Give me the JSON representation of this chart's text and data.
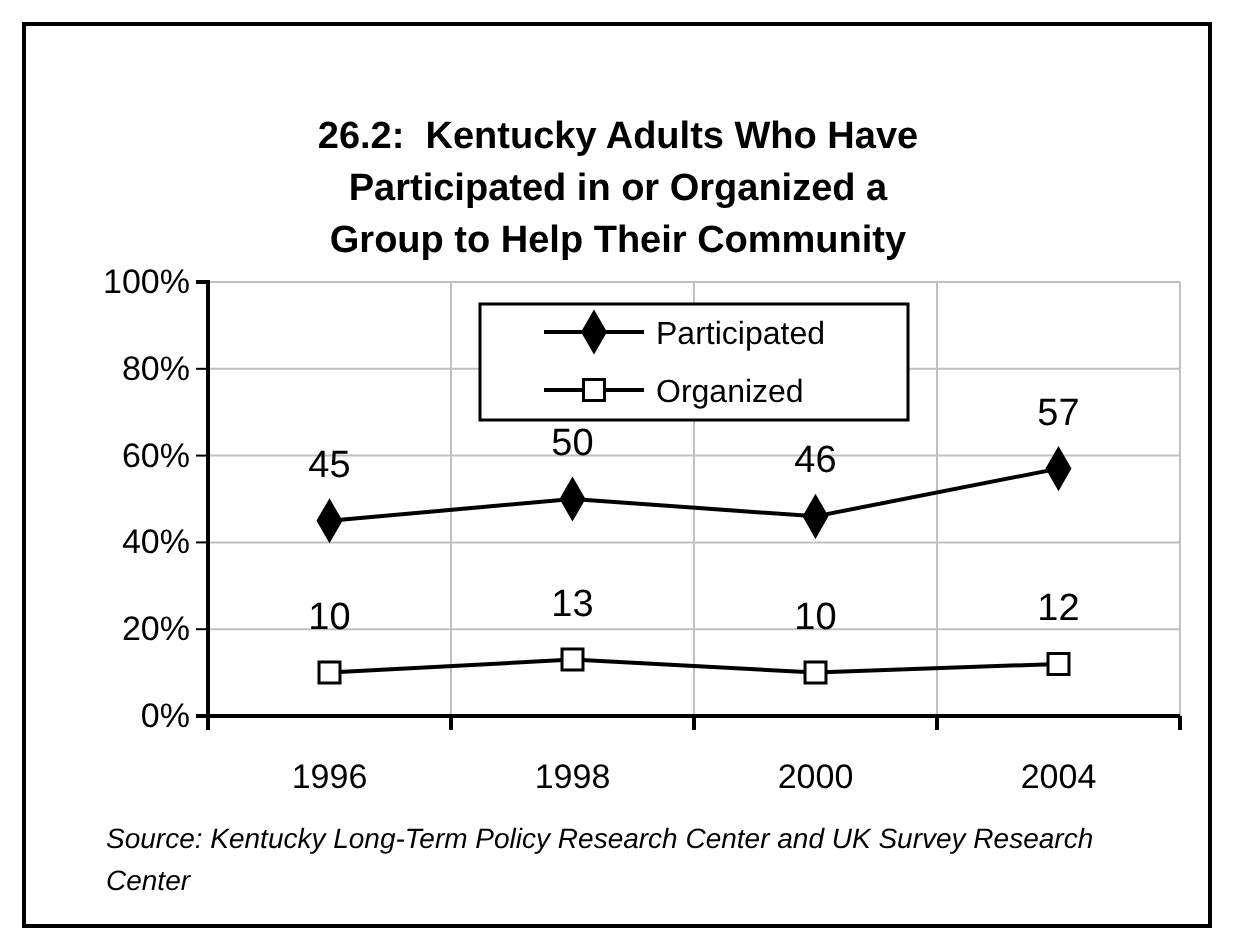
{
  "chart_data": {
    "type": "line",
    "title": "26.2:  Kentucky Adults Who Have Participated in or Organized a Group to Help Their Community",
    "categories": [
      "1996",
      "1998",
      "2000",
      "2004"
    ],
    "series": [
      {
        "name": "Participated",
        "color": "#000000",
        "marker": "diamond",
        "values": [
          45,
          50,
          46,
          57
        ]
      },
      {
        "name": "Organized",
        "color": "#000000",
        "marker": "square",
        "values": [
          10,
          13,
          10,
          12
        ]
      }
    ],
    "ylim": [
      0,
      100
    ],
    "yticks": [
      {
        "value": 0,
        "label": "0%"
      },
      {
        "value": 20,
        "label": "20%"
      },
      {
        "value": 40,
        "label": "40%"
      },
      {
        "value": 60,
        "label": "60%"
      },
      {
        "value": 80,
        "label": "80%"
      },
      {
        "value": 100,
        "label": "100%"
      }
    ],
    "grid": true,
    "legend": "top",
    "data_labels": true,
    "annotations": [
      "Source: Kentucky Long-Term Policy Research Center and UK Survey Research Center"
    ]
  }
}
